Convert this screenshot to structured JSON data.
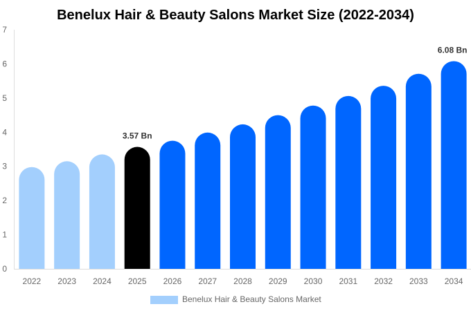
{
  "chart_data": {
    "type": "bar",
    "title": "Benelux Hair & Beauty Salons Market Size (2022-2034)",
    "xlabel": "",
    "ylabel": "",
    "ylim": [
      0,
      7
    ],
    "yticks": [
      "0",
      "1",
      "2",
      "3",
      "4",
      "5",
      "6",
      "7"
    ],
    "grid": false,
    "legend_position": "bottom",
    "categories": [
      "2022",
      "2023",
      "2024",
      "2025",
      "2026",
      "2027",
      "2028",
      "2029",
      "2030",
      "2031",
      "2032",
      "2033",
      "2034"
    ],
    "series": [
      {
        "name": "Benelux Hair & Beauty Salons Market",
        "values": [
          2.98,
          3.15,
          3.35,
          3.57,
          3.75,
          3.99,
          4.23,
          4.5,
          4.78,
          5.06,
          5.36,
          5.71,
          6.08
        ]
      }
    ],
    "bar_colors": [
      "#a3cffd",
      "#a3cffd",
      "#a3cffd",
      "#000000",
      "#0066ff",
      "#0066ff",
      "#0066ff",
      "#0066ff",
      "#0066ff",
      "#0066ff",
      "#0066ff",
      "#0066ff",
      "#0066ff"
    ],
    "legend_color": "#a3cffd",
    "data_labels": [
      {
        "category": "2025",
        "text": "3.57 Bn"
      },
      {
        "category": "2034",
        "text": "6.08 Bn"
      }
    ]
  }
}
